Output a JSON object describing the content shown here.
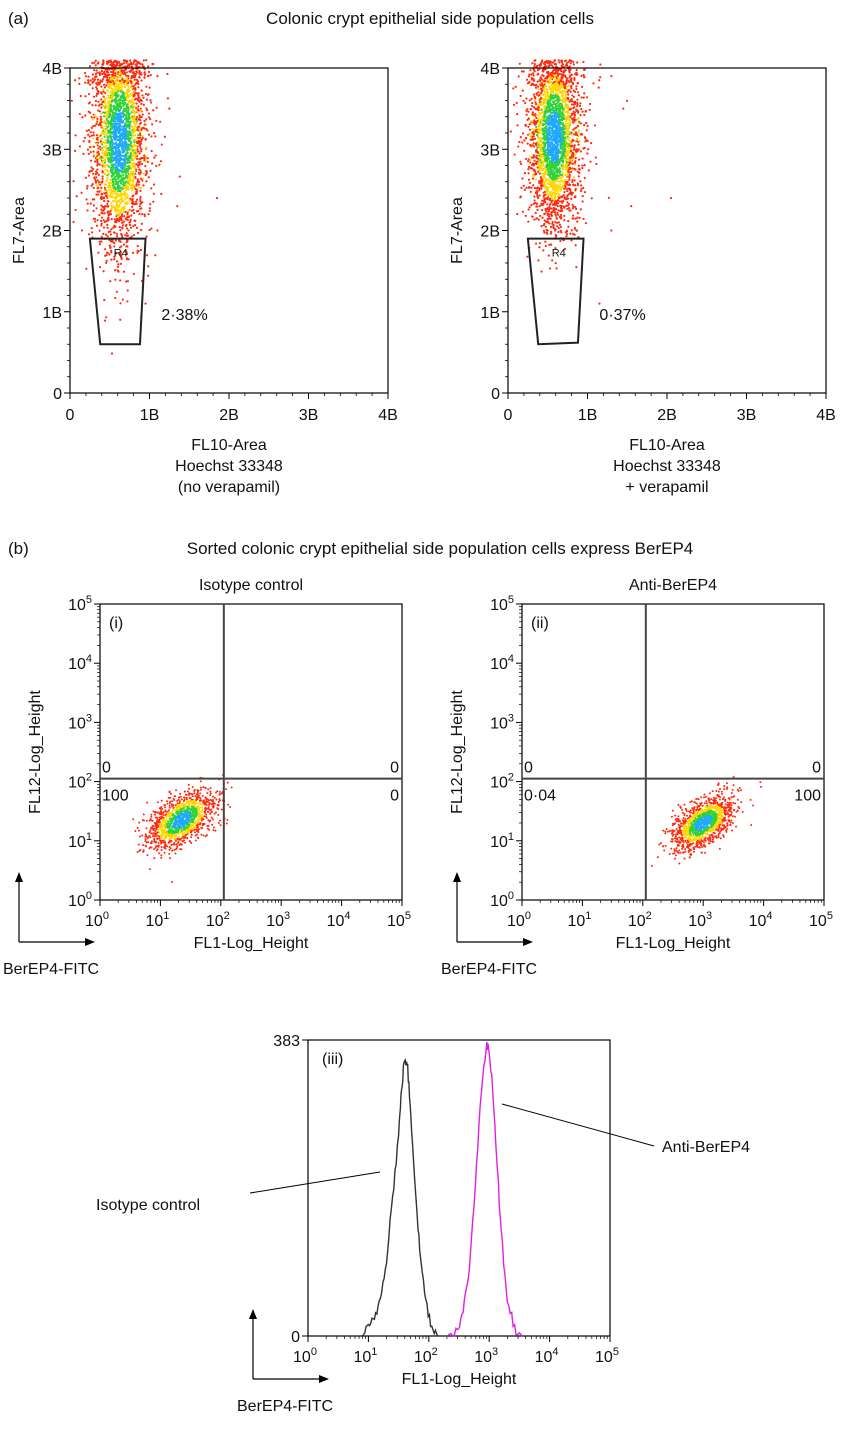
{
  "panel_a": {
    "letter": "(a)",
    "title": "Colonic crypt epithelial side population cells"
  },
  "panel_b": {
    "letter": "(b)",
    "title": "Sorted colonic crypt epithelial side population cells express BerEP4"
  },
  "chart_data": [
    {
      "id": "a-left",
      "type": "scatter",
      "ylabel": "FL7-Area",
      "xlabel_lines": [
        "FL10-Area",
        "Hoechst 33348",
        "(no verapamil)"
      ],
      "x_ticks": [
        "0",
        "1B",
        "2B",
        "3B",
        "4B"
      ],
      "y_ticks": [
        "0",
        "1B",
        "2B",
        "3B",
        "4B"
      ],
      "xlim": [
        0,
        4
      ],
      "ylim": [
        0,
        4
      ],
      "gate": {
        "name": "R4",
        "polygon": [
          [
            0.25,
            1.9
          ],
          [
            0.95,
            1.9
          ],
          [
            0.88,
            0.6
          ],
          [
            0.38,
            0.6
          ]
        ],
        "percent_label": "2·38%"
      },
      "population": {
        "center_x": 0.62,
        "center_y": 3.1,
        "sd_x": 0.16,
        "sd_y": 0.65
      },
      "colors": {
        "sparse": "#ff2a10",
        "mid": "#ffd600",
        "dense": "#2fd23a",
        "core": "#21a8ff"
      }
    },
    {
      "id": "a-right",
      "type": "scatter",
      "ylabel": "FL7-Area",
      "xlabel_lines": [
        "FL10-Area",
        "Hoechst 33348",
        "+ verapamil"
      ],
      "x_ticks": [
        "0",
        "1B",
        "2B",
        "3B",
        "4B"
      ],
      "y_ticks": [
        "0",
        "1B",
        "2B",
        "3B",
        "4B"
      ],
      "xlim": [
        0,
        4
      ],
      "ylim": [
        0,
        4
      ],
      "gate": {
        "name": "R4",
        "polygon": [
          [
            0.25,
            1.9
          ],
          [
            0.95,
            1.9
          ],
          [
            0.88,
            0.62
          ],
          [
            0.38,
            0.6
          ]
        ],
        "percent_label": "0·37%"
      },
      "population": {
        "center_x": 0.58,
        "center_y": 3.15,
        "sd_x": 0.15,
        "sd_y": 0.55
      },
      "colors": {
        "sparse": "#ff2a10",
        "mid": "#ffd600",
        "dense": "#2fd23a",
        "core": "#21a8ff"
      }
    },
    {
      "id": "b-i",
      "type": "scatter",
      "panel_label": "(i)",
      "title": "Isotype control",
      "ylabel": "FL12-Log_Height",
      "xlabel": "FL1-Log_Height",
      "axis_note": "BerEP4-FITC",
      "log_scale": true,
      "xlim": [
        0,
        5
      ],
      "ylim": [
        0,
        5
      ],
      "tick_exponents": [
        "0",
        "1",
        "2",
        "3",
        "4",
        "5"
      ],
      "tick_base": "10",
      "quadrant_split": {
        "x": 2.05,
        "y": 2.05
      },
      "quadrant_values": {
        "upper_left": "0",
        "upper_right": "0",
        "lower_left": "100",
        "lower_right": "0"
      },
      "population": {
        "center_log_x": 1.35,
        "center_log_y": 1.35,
        "spread": 0.22
      },
      "colors": {
        "sparse": "#ff2a10",
        "mid": "#ffd600",
        "dense": "#2fd23a",
        "core": "#21a8ff"
      }
    },
    {
      "id": "b-ii",
      "type": "scatter",
      "panel_label": "(ii)",
      "title": "Anti-BerEP4",
      "ylabel": "FL12-Log_Height",
      "xlabel": "FL1-Log_Height",
      "axis_note": "BerEP4-FITC",
      "log_scale": true,
      "xlim": [
        0,
        5
      ],
      "ylim": [
        0,
        5
      ],
      "tick_exponents": [
        "0",
        "1",
        "2",
        "3",
        "4",
        "5"
      ],
      "tick_base": "10",
      "quadrant_split": {
        "x": 2.05,
        "y": 2.05
      },
      "quadrant_values": {
        "upper_left": "0",
        "upper_right": "0",
        "lower_left": "0·04",
        "lower_right": "100"
      },
      "population": {
        "center_log_x": 3.0,
        "center_log_y": 1.3,
        "spread": 0.2
      },
      "colors": {
        "sparse": "#ff2a10",
        "mid": "#ffd600",
        "dense": "#2fd23a",
        "core": "#21a8ff"
      }
    },
    {
      "id": "b-iii",
      "type": "line",
      "panel_label": "(iii)",
      "xlabel": "FL1-Log_Height",
      "axis_note": "BerEP4-FITC",
      "log_scale": true,
      "xlim": [
        0,
        5
      ],
      "ylim": [
        0,
        383
      ],
      "y_ticks": [
        "0",
        "383"
      ],
      "tick_exponents": [
        "0",
        "1",
        "2",
        "3",
        "4",
        "5"
      ],
      "tick_base": "10",
      "series": [
        {
          "name": "Isotype control",
          "color": "#333333",
          "points": [
            [
              0.9,
              0
            ],
            [
              1.0,
              10
            ],
            [
              1.1,
              22
            ],
            [
              1.2,
              50
            ],
            [
              1.3,
              100
            ],
            [
              1.4,
              180
            ],
            [
              1.5,
              260
            ],
            [
              1.55,
              320
            ],
            [
              1.6,
              360
            ],
            [
              1.65,
              345
            ],
            [
              1.7,
              290
            ],
            [
              1.78,
              190
            ],
            [
              1.85,
              110
            ],
            [
              1.95,
              45
            ],
            [
              2.05,
              12
            ],
            [
              2.15,
              0
            ]
          ]
        },
        {
          "name": "Anti-BerEP4",
          "color": "#e020e0",
          "points": [
            [
              2.3,
              0
            ],
            [
              2.45,
              8
            ],
            [
              2.55,
              25
            ],
            [
              2.65,
              70
            ],
            [
              2.75,
              170
            ],
            [
              2.85,
              300
            ],
            [
              2.95,
              375
            ],
            [
              3.0,
              370
            ],
            [
              3.05,
              330
            ],
            [
              3.12,
              240
            ],
            [
              3.2,
              130
            ],
            [
              3.3,
              50
            ],
            [
              3.42,
              10
            ],
            [
              3.55,
              0
            ]
          ]
        }
      ]
    }
  ]
}
